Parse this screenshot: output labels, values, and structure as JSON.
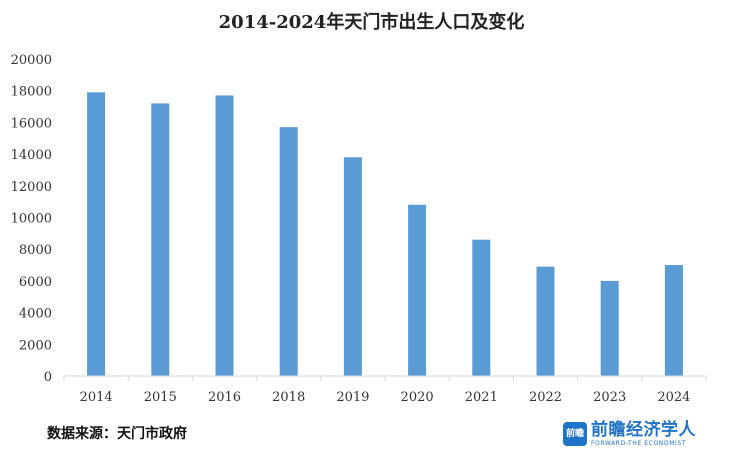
{
  "chart_data": {
    "type": "bar",
    "title": "2014-2024年天门市出生人口及变化",
    "categories": [
      "2014",
      "2015",
      "2016",
      "2018",
      "2019",
      "2020",
      "2021",
      "2022",
      "2023",
      "2024"
    ],
    "values": [
      17900,
      17200,
      17700,
      15700,
      13800,
      10800,
      8600,
      6900,
      6000,
      7000
    ],
    "ylim": [
      0,
      20000
    ],
    "yticks": [
      0,
      2000,
      4000,
      6000,
      8000,
      10000,
      12000,
      14000,
      16000,
      18000,
      20000
    ],
    "xlabel": "",
    "ylabel": "",
    "grid": false,
    "bar_color": "#5b9bd5",
    "axis_color": "#d9d9d9"
  },
  "source": "数据来源：天门市政府",
  "brand": {
    "logo_text": "前瞻",
    "name": "前瞻经济学人",
    "subtitle": "FORWARD-THE ECONOMIST",
    "color": "#1f73c8"
  }
}
